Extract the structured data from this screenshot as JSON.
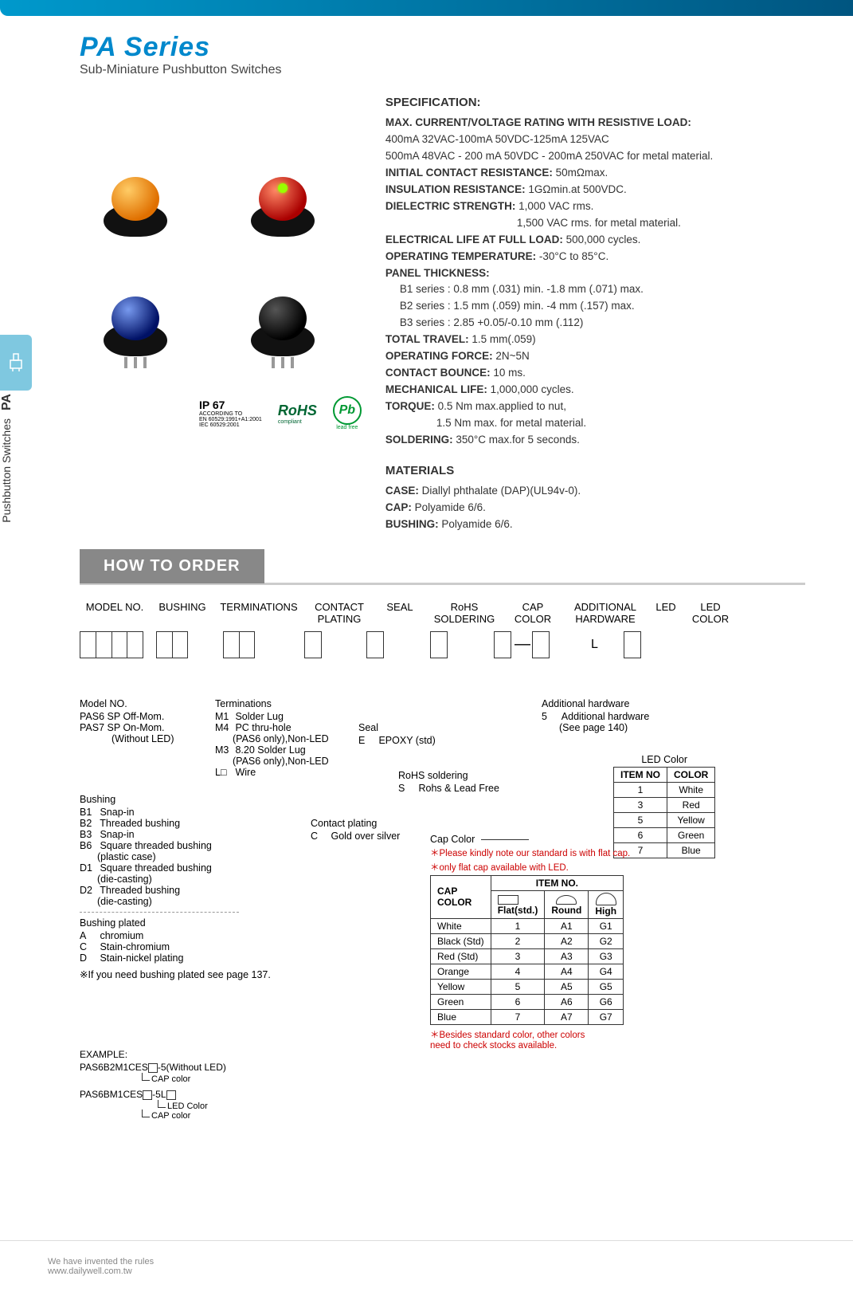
{
  "header": {
    "series": "PA Series",
    "subtitle": "Sub-Miniature Pushbutton Switches"
  },
  "side_tab": {
    "pa": "PA",
    "text": "Pushbutton Switches"
  },
  "compliance": {
    "ip": "IP 67",
    "ip_sub": "ACCORDING TO\nEN 60529:1991+A1:2001\nIEC 60529:2001",
    "rohs": "RoHS",
    "rohs_sub": "compliant",
    "pb": "Pb",
    "pb_sub": "lead free"
  },
  "spec": {
    "title": "SPECIFICATION:",
    "max_label": "MAX. CURRENT/VOLTAGE RATING WITH RESISTIVE LOAD:",
    "max1": "400mA 32VAC-100mA 50VDC-125mA 125VAC",
    "max2": "500mA 48VAC - 200 mA 50VDC - 200mA 250VAC for metal material.",
    "icr_label": "INITIAL CONTACT RESISTANCE:",
    "icr": "50mΩmax.",
    "ir_label": "INSULATION RESISTANCE:",
    "ir": "1GΩmin.at 500VDC.",
    "ds_label": "DIELECTRIC STRENGTH:",
    "ds1": "1,000 VAC rms.",
    "ds2": "1,500 VAC rms. for metal material.",
    "el_label": "ELECTRICAL LIFE AT FULL LOAD:",
    "el": "500,000 cycles.",
    "ot_label": "OPERATING TEMPERATURE:",
    "ot": "-30°C to 85°C.",
    "pt_label": "PANEL THICKNESS:",
    "pt_b1": "B1 series : 0.8 mm (.031) min. -1.8 mm (.071) max.",
    "pt_b2": "B2 series : 1.5 mm (.059) min. -4 mm (.157) max.",
    "pt_b3": "B3 series : 2.85 +0.05/-0.10 mm  (.112)",
    "tt_label": "TOTAL TRAVEL:",
    "tt": "1.5 mm(.059)",
    "of_label": "OPERATING FORCE:",
    "of": "2N~5N",
    "cb_label": "CONTACT BOUNCE:",
    "cb": "10 ms.",
    "ml_label": "MECHANICAL LIFE:",
    "ml": "1,000,000 cycles.",
    "tq_label": "TORQUE:",
    "tq1": "0.5 Nm max.applied to nut,",
    "tq2": "1.5 Nm max. for metal material.",
    "sd_label": "SOLDERING:",
    "sd": "350°C max.for 5 seconds."
  },
  "materials": {
    "title": "MATERIALS",
    "case_l": "CASE:",
    "case_v": "Diallyl phthalate (DAP)(UL94v-0).",
    "cap_l": "CAP:",
    "cap_v": "Polyamide 6/6.",
    "bush_l": "BUSHING:",
    "bush_v": "Polyamide 6/6."
  },
  "order": {
    "tab": "HOW TO ORDER",
    "headers": [
      "MODEL NO.",
      "BUSHING",
      "TERMINATIONS",
      "CONTACT\nPLATING",
      "SEAL",
      "RoHS\nSOLDERING",
      "CAP\nCOLOR",
      "ADDITIONAL\nHARDWARE",
      "LED",
      "LED\nCOLOR"
    ],
    "led_fixed": "L"
  },
  "model_no": {
    "title": "Model NO.",
    "items": [
      {
        "c": "PAS6",
        "t": "SP Off-Mom."
      },
      {
        "c": "PAS7",
        "t": "SP On-Mom."
      }
    ],
    "note": "(Without LED)"
  },
  "terminations": {
    "title": "Terminations",
    "items": [
      {
        "c": "M1",
        "t": "Solder Lug"
      },
      {
        "c": "M4",
        "t": "PC thru-hole",
        "n": "(PAS6 only),Non-LED"
      },
      {
        "c": "M3",
        "t": "8.20 Solder Lug",
        "n": "(PAS6 only),Non-LED"
      },
      {
        "c": "L□",
        "t": "Wire"
      }
    ]
  },
  "bushing": {
    "title": "Bushing",
    "items": [
      {
        "c": "B1",
        "t": "Snap-in"
      },
      {
        "c": "B2",
        "t": "Threaded bushing"
      },
      {
        "c": "B3",
        "t": "Snap-in"
      },
      {
        "c": "B6",
        "t": "Square threaded bushing",
        "n": "(plastic case)"
      },
      {
        "c": "D1",
        "t": "Square threaded bushing",
        "n": "(die-casting)"
      },
      {
        "c": "D2",
        "t": "Threaded bushing",
        "n": "(die-casting)"
      }
    ],
    "plated_title": "Bushing plated",
    "plated": [
      {
        "c": "A",
        "t": "chromium"
      },
      {
        "c": "C",
        "t": "Stain-chromium"
      },
      {
        "c": "D",
        "t": "Stain-nickel plating"
      }
    ],
    "plated_note": "※If you need bushing plated see page 137."
  },
  "contact_plating": {
    "title": "Contact plating",
    "items": [
      {
        "c": "C",
        "t": "Gold over silver"
      }
    ]
  },
  "seal": {
    "title": "Seal",
    "items": [
      {
        "c": "E",
        "t": "EPOXY (std)"
      }
    ]
  },
  "rohs_soldering": {
    "title": "RoHS soldering",
    "items": [
      {
        "c": "S",
        "t": "Rohs & Lead Free"
      }
    ]
  },
  "additional_hw": {
    "title": "Additional hardware",
    "items": [
      {
        "c": "5",
        "t": "Additional hardware",
        "n": "(See page 140)"
      }
    ]
  },
  "led_color": {
    "title": "LED Color",
    "head": [
      "ITEM NO",
      "COLOR"
    ],
    "rows": [
      [
        "1",
        "White"
      ],
      [
        "3",
        "Red"
      ],
      [
        "5",
        "Yellow"
      ],
      [
        "6",
        "Green"
      ],
      [
        "7",
        "Blue"
      ]
    ]
  },
  "cap_color": {
    "title": "Cap Color",
    "note1": "＊Please kindly note our standard is with flat cap.",
    "note2": "＊only flat cap available with LED.",
    "head_top": "ITEM NO.",
    "corner": "CAP\nCOLOR",
    "shape_labels": [
      "Flat(std.)",
      "Round",
      "High"
    ],
    "rows": [
      [
        "White",
        "1",
        "A1",
        "G1"
      ],
      [
        "Black (Std)",
        "2",
        "A2",
        "G2"
      ],
      [
        "Red (Std)",
        "3",
        "A3",
        "G3"
      ],
      [
        "Orange",
        "4",
        "A4",
        "G4"
      ],
      [
        "Yellow",
        "5",
        "A5",
        "G5"
      ],
      [
        "Green",
        "6",
        "A6",
        "G6"
      ],
      [
        "Blue",
        "7",
        "A7",
        "G7"
      ]
    ],
    "note3": "＊Besides standard color, other colors\n    need to check stocks available."
  },
  "example": {
    "title": "EXAMPLE:",
    "l1a": "PAS6B2M1CES",
    "l1b": "-5(Without LED)",
    "l1sub": "CAP color",
    "l2a": "PAS6BM1CES",
    "l2b": "-5L",
    "l2sub1": "LED Color",
    "l2sub2": "CAP color"
  },
  "footer": {
    "l1": "We have invented the rules",
    "l2": "www.dailywell.com.tw"
  }
}
